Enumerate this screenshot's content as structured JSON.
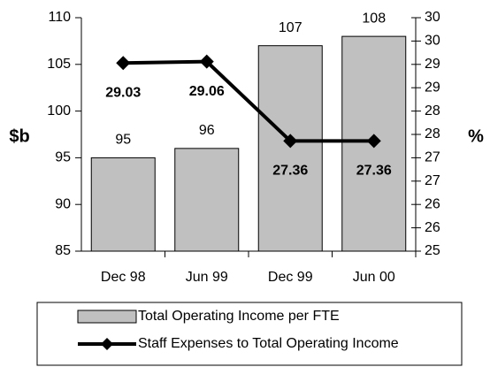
{
  "chart_data": {
    "type": "bar",
    "categories": [
      "Dec 98",
      "Jun 99",
      "Dec 99",
      "Jun 00"
    ],
    "series": [
      {
        "name": "Total Operating Income per FTE",
        "type": "bar",
        "color": "#c0c0c0",
        "values": [
          95,
          96,
          107,
          108
        ]
      },
      {
        "name": "Staff Expenses to Total Operating Income",
        "type": "line",
        "axis": "y2",
        "color": "#000000",
        "values": [
          29.03,
          29.06,
          27.36,
          27.36
        ]
      }
    ],
    "ylabel": "$b",
    "y2label": "%",
    "ylim": [
      85,
      110
    ],
    "yticks": [
      85,
      90,
      95,
      100,
      105,
      110
    ],
    "y2lim": [
      25,
      30
    ],
    "y2ticks": [
      25,
      {
        "value": 25.5,
        "label": "26"
      },
      26,
      {
        "value": 26.5,
        "label": "27"
      },
      27,
      {
        "value": 27.5,
        "label": "28"
      },
      28,
      {
        "value": 28.5,
        "label": "29"
      },
      29,
      {
        "value": 29.5,
        "label": "30"
      },
      30
    ],
    "legend": "bottom"
  }
}
